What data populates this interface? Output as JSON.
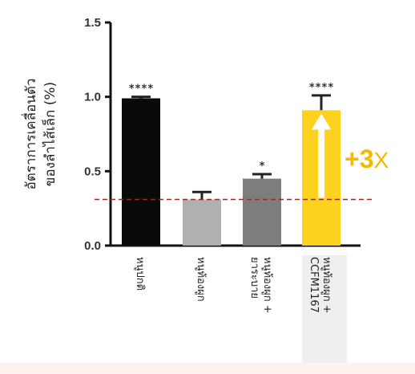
{
  "chart_data": {
    "type": "bar",
    "title": "",
    "ylabel_lines": [
      "อัตราการเคลื่อนตัว",
      "ของลำไส้เล็ก (%)"
    ],
    "xlabel": "",
    "ylim": [
      0.0,
      1.5
    ],
    "yticks": [
      "0.0",
      "0.5",
      "1.0",
      "1.5"
    ],
    "ytick_values": [
      0.0,
      0.5,
      1.0,
      1.5
    ],
    "categories": [
      {
        "lines": [
          "หนูปกติ"
        ]
      },
      {
        "lines": [
          "หนูท้องผูก"
        ]
      },
      {
        "lines": [
          "หนูท้องผูก +",
          "ยาระบาย"
        ]
      },
      {
        "lines": [
          "หนูท้องผูก +",
          "CCFM1167"
        ]
      }
    ],
    "values": [
      0.99,
      0.31,
      0.45,
      0.91
    ],
    "errors": [
      0.01,
      0.05,
      0.03,
      0.1
    ],
    "significance": [
      "****",
      "",
      "*",
      "****"
    ],
    "bar_colors": [
      "#0a0a0a",
      "#b0b0b0",
      "#7d7d7d",
      "#ffd21f"
    ],
    "reference_line": 0.31,
    "reference_color": "#9b2b1f",
    "highlight_color": "#f5b800",
    "annotation_number": "+3",
    "annotation_suffix": "X"
  }
}
